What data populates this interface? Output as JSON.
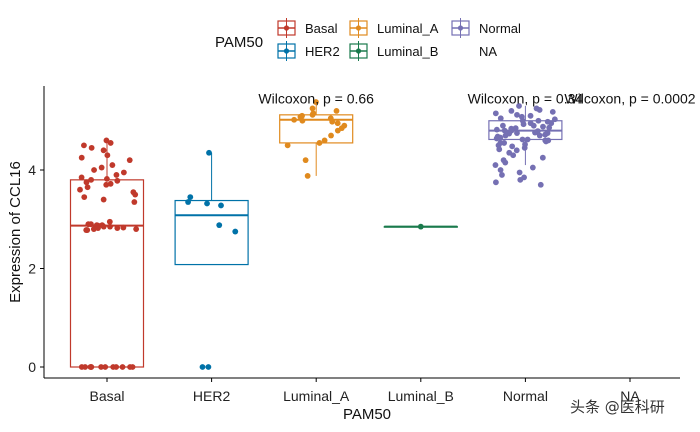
{
  "chart_data": {
    "type": "boxplot",
    "xlabel": "PAM50",
    "ylabel": "Expression of CCL16",
    "categories": [
      "Basal",
      "HER2",
      "Luminal_A",
      "Luminal_B",
      "Normal",
      "NA"
    ],
    "ylim": [
      -0.2,
      5.7
    ],
    "yticks": [
      0,
      2,
      4
    ],
    "legend": {
      "title": "PAM50",
      "placement": "top",
      "entries": [
        "Basal",
        "HER2",
        "Luminal_A",
        "Luminal_B",
        "Normal",
        "NA"
      ]
    },
    "colors": {
      "Basal": "#C0392B",
      "HER2": "#0072A8",
      "Luminal_A": "#E08A1E",
      "Luminal_B": "#1A7A4C",
      "Normal": "#7570B3",
      "NA": "#999999"
    },
    "boxes": [
      {
        "name": "Basal",
        "q1": 0.0,
        "median": 2.87,
        "q3": 3.8,
        "whisker_low": 0.0,
        "whisker_high": 4.6
      },
      {
        "name": "HER2",
        "q1": 2.08,
        "median": 3.08,
        "q3": 3.38,
        "whisker_low": 2.08,
        "whisker_high": 4.35
      },
      {
        "name": "Luminal_A",
        "q1": 4.55,
        "median": 5.02,
        "q3": 5.12,
        "whisker_low": 3.88,
        "whisker_high": 5.38
      },
      {
        "name": "Luminal_B",
        "q1": 2.85,
        "median": 2.85,
        "q3": 2.85,
        "whisker_low": 2.85,
        "whisker_high": 2.85
      },
      {
        "name": "Normal",
        "q1": 4.62,
        "median": 4.8,
        "q3": 5.0,
        "whisker_low": 4.1,
        "whisker_high": 5.3
      }
    ],
    "points": {
      "Basal": [
        4.6,
        4.55,
        4.5,
        4.45,
        4.4,
        4.3,
        4.25,
        4.2,
        4.1,
        4.05,
        4.0,
        3.95,
        3.9,
        3.85,
        3.82,
        3.8,
        3.78,
        3.75,
        3.72,
        3.7,
        3.65,
        3.6,
        3.55,
        3.5,
        3.45,
        3.4,
        3.35,
        2.9,
        2.88,
        2.85,
        2.82,
        2.8,
        2.78,
        2.8,
        2.85,
        2.9,
        2.95,
        2.88,
        2.78,
        2.83,
        2.87,
        2.82,
        0.0,
        0.0,
        0.0,
        0.0,
        0.0,
        0.0,
        0.0,
        0.0,
        0.0,
        0.0,
        0.0,
        0.0
      ],
      "HER2": [
        4.35,
        3.45,
        3.35,
        3.32,
        3.28,
        2.88,
        2.75,
        0.0,
        0.0
      ],
      "Luminal_A": [
        5.38,
        5.25,
        5.2,
        5.15,
        5.12,
        5.1,
        5.08,
        5.05,
        5.02,
        5.0,
        4.98,
        4.95,
        4.9,
        4.85,
        4.8,
        4.7,
        4.6,
        4.55,
        4.5,
        4.2,
        3.88
      ],
      "Luminal_B": [
        2.85
      ],
      "Normal": [
        5.3,
        5.25,
        5.22,
        5.2,
        5.18,
        5.15,
        5.12,
        5.1,
        5.08,
        5.05,
        5.03,
        5.0,
        4.98,
        4.95,
        4.93,
        4.9,
        4.88,
        4.86,
        4.84,
        4.82,
        4.8,
        4.79,
        4.78,
        4.76,
        4.75,
        4.74,
        4.72,
        4.7,
        4.68,
        4.66,
        4.64,
        4.62,
        4.6,
        4.58,
        4.55,
        4.52,
        4.5,
        4.48,
        4.45,
        4.42,
        4.4,
        4.35,
        4.3,
        4.25,
        4.2,
        4.15,
        4.1,
        4.05,
        4.0,
        3.95,
        3.9,
        3.85,
        3.8,
        3.75,
        3.7,
        4.62,
        4.7,
        4.85,
        4.95,
        5.0,
        4.9,
        4.8,
        4.75,
        4.65,
        4.6,
        4.55
      ]
    },
    "annotations": [
      {
        "text": "Wilcoxon, p = 0.66",
        "category": "Luminal_A",
        "y": 5.35
      },
      {
        "text": "Wilcoxon, p = 0.34",
        "category": "Normal",
        "y": 5.35
      },
      {
        "text": "Wilcoxon, p = 0.0002",
        "category": "NA",
        "y": 5.35
      }
    ]
  },
  "watermark": "头条 @医科研"
}
